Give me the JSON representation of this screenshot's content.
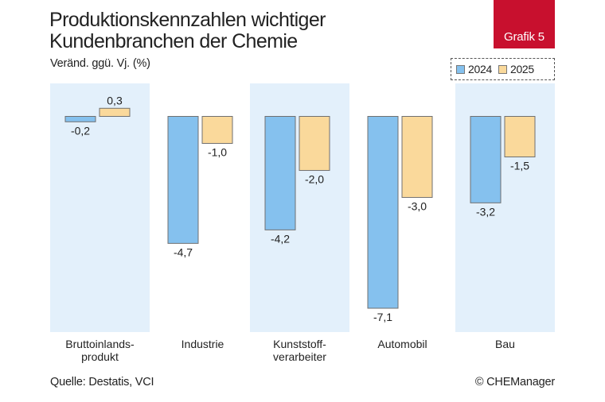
{
  "header": {
    "title_line1": "Produktionskennzahlen wichtiger",
    "title_line2": "Kundenbranchen der Chemie",
    "subtitle": "Veränd. ggü. Vj. (%)",
    "badge": "Grafik 5"
  },
  "legend": {
    "items": [
      {
        "label": "2024",
        "color": "#85c1ee"
      },
      {
        "label": "2025",
        "color": "#fad99b"
      }
    ]
  },
  "footer": {
    "source": "Quelle: Destatis, VCI",
    "copyright": "© CHEManager"
  },
  "colors": {
    "bar_2024": "#85c1ee",
    "bar_2025": "#fad99b",
    "band": "#e3f0fb",
    "bar_stroke": "#707070"
  },
  "chart_data": {
    "type": "bar",
    "title": "Produktionskennzahlen wichtiger Kundenbranchen der Chemie",
    "ylabel": "Veränd. ggü. Vj. (%)",
    "ylim": [
      -7.1,
      0.3
    ],
    "grid": false,
    "legend_position": "top-right",
    "categories": [
      [
        "Bruttoinlands-",
        "produkt"
      ],
      [
        "Industrie"
      ],
      [
        "Kunststoff-",
        "verarbeiter"
      ],
      [
        "Automobil"
      ],
      [
        "Bau"
      ]
    ],
    "series": [
      {
        "name": "2024",
        "values": [
          -0.2,
          -4.7,
          -4.2,
          -7.1,
          -3.2
        ],
        "labels": [
          "-0,2",
          "-4,7",
          "-4,2",
          "-7,1",
          "-3,2"
        ]
      },
      {
        "name": "2025",
        "values": [
          0.3,
          -1.0,
          -2.0,
          -3.0,
          -1.5
        ],
        "labels": [
          "0,3",
          "-1,0",
          "-2,0",
          "-3,0",
          "-1,5"
        ]
      }
    ],
    "shaded_categories": [
      0,
      2,
      4
    ]
  }
}
